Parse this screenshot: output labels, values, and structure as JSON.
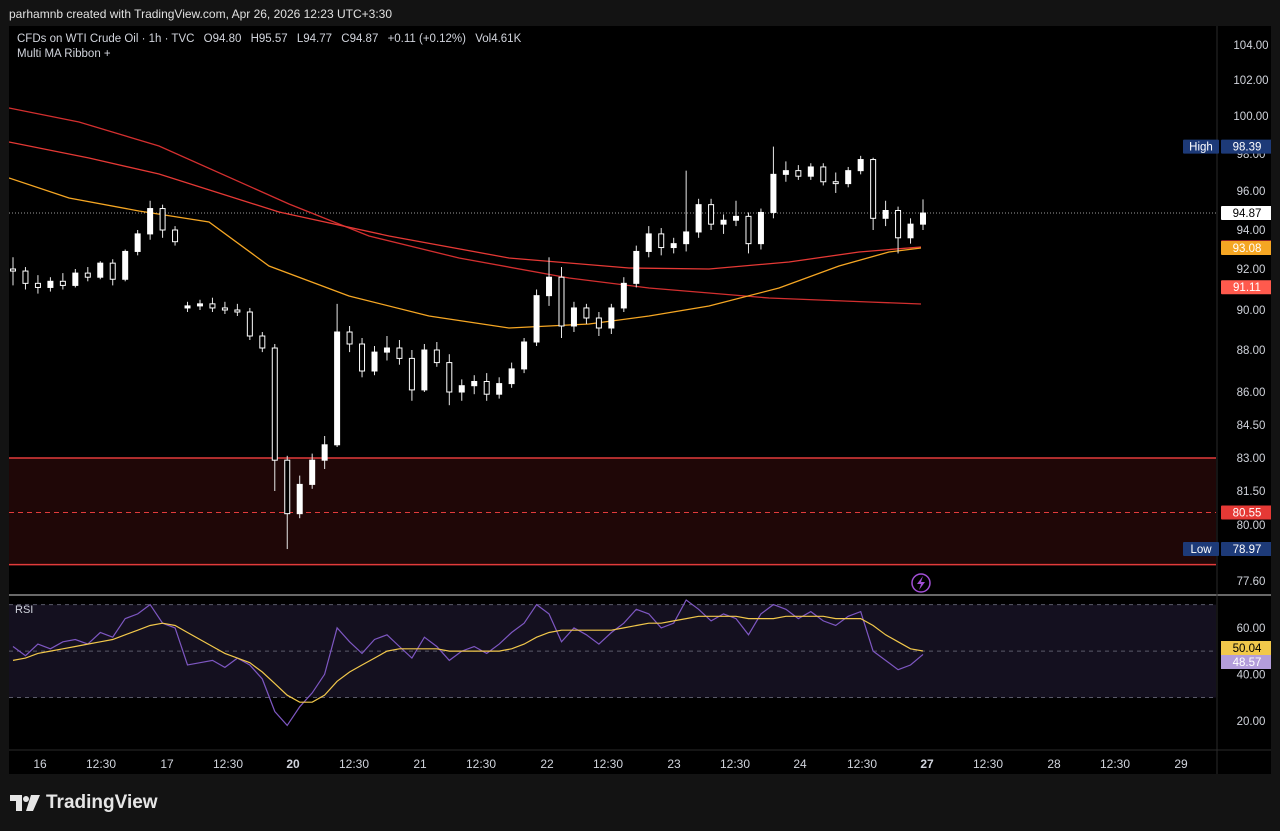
{
  "credit": "parhamnb created with TradingView.com, Apr 26, 2026 12:23 UTC+3:30",
  "legend": {
    "symbol": "CFDs on WTI Crude Oil · 1h · TVC",
    "open": "O94.80",
    "high": "H95.57",
    "low": "L94.77",
    "close": "C94.87",
    "change": "+0.11 (+0.12%)",
    "volume": "Vol4.61K",
    "indicator": "Multi MA Ribbon +"
  },
  "rsi_label": "RSI",
  "brand": "TradingView",
  "colors": {
    "background": "#000000",
    "up_candle": "#ffffff",
    "ma_fast": "#f5a623",
    "ma_mid": "#e53935",
    "ma_slow": "#ff5a4d",
    "zone_line": "#e23b3b",
    "zone_fill": "#1f0707",
    "rsi_line": "#7e57c2",
    "rsi_ma": "#f2c84b",
    "rsi_band": "#14101f"
  },
  "chart_data": {
    "type": "candlestick",
    "symbol": "CFDs on WTI Crude Oil",
    "interval": "1h",
    "x_ticks": [
      "16",
      "12:30",
      "17",
      "12:30",
      "20",
      "12:30",
      "21",
      "12:30",
      "22",
      "12:30",
      "23",
      "12:30",
      "24",
      "12:30",
      "27",
      "12:30",
      "28",
      "12:30",
      "29"
    ],
    "y_ticks": [
      "104.00",
      "102.00",
      "100.00",
      "98.00",
      "96.00",
      "94.00",
      "92.00",
      "90.00",
      "88.00",
      "86.00",
      "84.50",
      "83.00",
      "81.50",
      "80.00",
      "77.60"
    ],
    "ylim": [
      77.0,
      105.0
    ],
    "price_labels": [
      {
        "text": "High",
        "value": "98.39",
        "price": 98.39,
        "color": "#1d3a78",
        "kind": "tag"
      },
      {
        "text": "",
        "value": "94.87",
        "price": 94.87,
        "color": "#ffffff",
        "kind": "last"
      },
      {
        "text": "",
        "value": "93.11",
        "price": 93.11,
        "color": "#e53935",
        "kind": "ma"
      },
      {
        "text": "",
        "value": "93.08",
        "price": 93.08,
        "color": "#f5a623",
        "kind": "ma"
      },
      {
        "text": "",
        "value": "91.11",
        "price": 91.11,
        "color": "#ff5a4d",
        "kind": "ma"
      },
      {
        "text": "",
        "value": "80.55",
        "price": 80.55,
        "color": "#e53935",
        "kind": "zone"
      },
      {
        "text": "Low",
        "value": "78.97",
        "price": 78.97,
        "color": "#1d3a78",
        "kind": "tag"
      }
    ],
    "zone": {
      "top": 83.0,
      "mid": 80.55,
      "bottom": 78.3
    },
    "candles_approx": [
      [
        92.0,
        92.6,
        91.2,
        91.9
      ],
      [
        91.9,
        92.1,
        91.0,
        91.3
      ],
      [
        91.3,
        91.7,
        90.8,
        91.1
      ],
      [
        91.1,
        91.6,
        90.9,
        91.4
      ],
      [
        91.4,
        91.8,
        91.0,
        91.2
      ],
      [
        91.2,
        92.0,
        91.1,
        91.8
      ],
      [
        91.8,
        92.1,
        91.4,
        91.6
      ],
      [
        91.6,
        92.4,
        91.5,
        92.3
      ],
      [
        92.3,
        92.5,
        91.2,
        91.5
      ],
      [
        91.5,
        93.0,
        91.4,
        92.9
      ],
      [
        92.9,
        94.0,
        92.7,
        93.8
      ],
      [
        93.8,
        95.5,
        93.5,
        95.1
      ],
      [
        95.1,
        95.3,
        93.6,
        94.0
      ],
      [
        94.0,
        94.2,
        93.2,
        93.4
      ],
      [
        90.1,
        90.4,
        89.9,
        90.2
      ],
      [
        90.2,
        90.5,
        90.0,
        90.3
      ],
      [
        90.3,
        90.6,
        89.9,
        90.1
      ],
      [
        90.1,
        90.4,
        89.8,
        90.0
      ],
      [
        90.0,
        90.3,
        89.7,
        89.9
      ],
      [
        89.9,
        90.1,
        88.5,
        88.7
      ],
      [
        88.7,
        88.9,
        87.9,
        88.1
      ],
      [
        88.1,
        88.3,
        81.5,
        82.9
      ],
      [
        82.9,
        83.1,
        78.97,
        80.5
      ],
      [
        80.5,
        82.2,
        80.3,
        81.8
      ],
      [
        81.8,
        83.2,
        81.6,
        82.9
      ],
      [
        82.9,
        84.0,
        82.5,
        83.6
      ],
      [
        83.6,
        90.3,
        83.5,
        88.9
      ],
      [
        88.9,
        89.2,
        87.9,
        88.3
      ],
      [
        88.3,
        88.6,
        86.7,
        87.0
      ],
      [
        87.0,
        88.2,
        86.8,
        87.9
      ],
      [
        87.9,
        88.7,
        87.5,
        88.1
      ],
      [
        88.1,
        88.5,
        87.3,
        87.6
      ],
      [
        87.6,
        88.0,
        85.6,
        86.1
      ],
      [
        86.1,
        88.3,
        86.0,
        88.0
      ],
      [
        88.0,
        88.4,
        87.2,
        87.4
      ],
      [
        87.4,
        87.8,
        85.4,
        86.0
      ],
      [
        86.0,
        86.6,
        85.6,
        86.3
      ],
      [
        86.3,
        86.8,
        85.9,
        86.5
      ],
      [
        86.5,
        86.9,
        85.6,
        85.9
      ],
      [
        85.9,
        86.7,
        85.7,
        86.4
      ],
      [
        86.4,
        87.4,
        86.2,
        87.1
      ],
      [
        87.1,
        88.6,
        86.9,
        88.4
      ],
      [
        88.4,
        91.0,
        88.2,
        90.7
      ],
      [
        90.7,
        92.6,
        90.2,
        91.6
      ],
      [
        91.6,
        92.1,
        88.6,
        89.2
      ],
      [
        89.2,
        90.4,
        88.9,
        90.1
      ],
      [
        90.1,
        90.3,
        89.3,
        89.6
      ],
      [
        89.6,
        89.9,
        88.7,
        89.1
      ],
      [
        89.1,
        90.3,
        88.8,
        90.1
      ],
      [
        90.1,
        91.6,
        89.9,
        91.3
      ],
      [
        91.3,
        93.2,
        91.1,
        92.9
      ],
      [
        92.9,
        94.2,
        92.6,
        93.8
      ],
      [
        93.8,
        94.1,
        92.7,
        93.1
      ],
      [
        93.1,
        93.6,
        92.8,
        93.3
      ],
      [
        93.3,
        97.1,
        92.9,
        93.9
      ],
      [
        93.9,
        95.6,
        93.6,
        95.3
      ],
      [
        95.3,
        95.6,
        94.0,
        94.3
      ],
      [
        94.3,
        94.8,
        93.8,
        94.5
      ],
      [
        94.5,
        95.5,
        94.2,
        94.7
      ],
      [
        94.7,
        94.9,
        92.8,
        93.3
      ],
      [
        93.3,
        95.1,
        93.0,
        94.9
      ],
      [
        94.9,
        98.39,
        94.6,
        96.9
      ],
      [
        96.9,
        97.6,
        96.5,
        97.1
      ],
      [
        97.1,
        97.4,
        96.6,
        96.8
      ],
      [
        96.8,
        97.5,
        96.6,
        97.3
      ],
      [
        97.3,
        97.5,
        96.3,
        96.5
      ],
      [
        96.5,
        97.0,
        95.9,
        96.4
      ],
      [
        96.4,
        97.3,
        96.2,
        97.1
      ],
      [
        97.1,
        97.9,
        96.9,
        97.7
      ],
      [
        97.7,
        97.8,
        94.0,
        94.6
      ],
      [
        94.6,
        95.5,
        94.2,
        95.0
      ],
      [
        95.0,
        95.2,
        92.8,
        93.6
      ],
      [
        93.6,
        94.6,
        93.3,
        94.3
      ],
      [
        94.3,
        95.57,
        94.0,
        94.87
      ]
    ],
    "series": [
      {
        "name": "Multi MA Ribbon +",
        "color": "#ff5a4d"
      },
      {
        "color": "#e53935"
      },
      {
        "color": "#f5a623"
      }
    ],
    "rsi": {
      "y_ticks": [
        "60.00",
        "40.00",
        "20.00"
      ],
      "ylim": [
        10,
        72
      ],
      "bands": [
        70,
        30
      ],
      "mid": 50,
      "labels": [
        {
          "value": "50.04",
          "color": "#f2c84b"
        },
        {
          "value": "48.57",
          "color": "#b39ddb"
        }
      ]
    }
  }
}
